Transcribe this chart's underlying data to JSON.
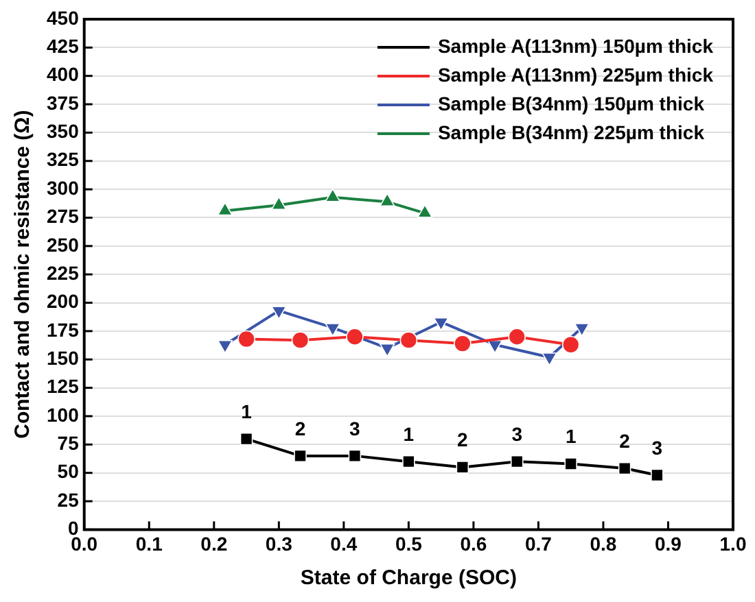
{
  "chart_data": {
    "type": "line",
    "xlabel": "State of Charge (SOC)",
    "ylabel": "Contact and ohmic resistance (Ω)",
    "xlim": [
      0,
      1
    ],
    "xticks": [
      {
        "value": 0,
        "label": "0.0"
      },
      0.1,
      0.2,
      0.3,
      0.4,
      0.5,
      0.6,
      0.7,
      0.8,
      0.9,
      {
        "value": 1,
        "label": "1.0"
      }
    ],
    "ylim": [
      0,
      450
    ],
    "yticks": [
      0,
      25,
      50,
      75,
      100,
      125,
      150,
      175,
      200,
      225,
      250,
      275,
      300,
      325,
      350,
      375,
      400,
      425,
      450
    ],
    "grid": "y",
    "legend": "top right",
    "series": [
      {
        "name": "Sample A(113nm) 150µm thick",
        "color": "#000000",
        "marker": "square",
        "x": [
          0.25,
          0.333,
          0.417,
          0.5,
          0.583,
          0.667,
          0.75,
          0.833,
          0.883
        ],
        "values": [
          80,
          65,
          65,
          60,
          55,
          60,
          58,
          54,
          48
        ]
      },
      {
        "name": "Sample A(113nm) 225µm thick",
        "color": "#ee2a2a",
        "marker": "circle",
        "x": [
          0.25,
          0.333,
          0.417,
          0.5,
          0.583,
          0.667,
          0.75
        ],
        "values": [
          168,
          167,
          170,
          167,
          164,
          170,
          163
        ]
      },
      {
        "name": "Sample B(34nm) 150µm thick",
        "color": "#3a55a8",
        "marker": "triangle-down",
        "x": [
          0.217,
          0.3,
          0.383,
          0.467,
          0.55,
          0.633,
          0.717,
          0.767
        ],
        "values": [
          163,
          193,
          178,
          160,
          183,
          163,
          152,
          178
        ]
      },
      {
        "name": "Sample B(34nm) 225µm thick",
        "color": "#1a8040",
        "marker": "triangle",
        "x": [
          0.217,
          0.3,
          0.383,
          0.467,
          0.525
        ],
        "values": [
          281,
          286,
          293,
          289,
          279
        ]
      }
    ],
    "annotations": [
      {
        "text": "1",
        "x": 0.25,
        "y": 80
      },
      {
        "text": "2",
        "x": 0.333,
        "y": 65
      },
      {
        "text": "3",
        "x": 0.417,
        "y": 65
      },
      {
        "text": "1",
        "x": 0.5,
        "y": 60
      },
      {
        "text": "2",
        "x": 0.583,
        "y": 55
      },
      {
        "text": "3",
        "x": 0.667,
        "y": 60
      },
      {
        "text": "1",
        "x": 0.75,
        "y": 58
      },
      {
        "text": "2",
        "x": 0.833,
        "y": 54
      },
      {
        "text": "3",
        "x": 0.883,
        "y": 48
      }
    ]
  }
}
